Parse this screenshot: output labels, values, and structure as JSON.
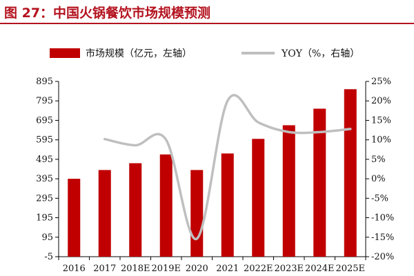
{
  "header": {
    "title": "图 27：中国火锅餐饮市场规模预测"
  },
  "colors": {
    "title": "#b3121e",
    "rule": "#b3121e",
    "bar": "#c00000",
    "line": "#bfbfbf",
    "axis": "#000000"
  },
  "chart_data": {
    "type": "bar",
    "categories": [
      "2016",
      "2017",
      "2018E",
      "2019E",
      "2020",
      "2021",
      "2022E",
      "2023E",
      "2024E",
      "2025E"
    ],
    "series": [
      {
        "name": "市场规模（亿元，左轴）",
        "type": "bar",
        "axis": "left",
        "values": [
          395,
          440,
          475,
          520,
          440,
          525,
          600,
          670,
          755,
          855
        ]
      },
      {
        "name": "YOY（%，右轴）",
        "type": "line",
        "axis": "right",
        "values": [
          null,
          10.2,
          8.6,
          10.0,
          -15.4,
          20.0,
          14.5,
          12.0,
          12.0,
          12.8
        ]
      }
    ],
    "y_left": {
      "ticks": [
        "895",
        "795",
        "695",
        "595",
        "495",
        "395",
        "295",
        "195",
        "95",
        "-5"
      ],
      "range": [
        -5,
        895
      ]
    },
    "y_right": {
      "ticks": [
        "25%",
        "20%",
        "15%",
        "10%",
        "5%",
        "0%",
        "-5%",
        "-10%",
        "-15%",
        "-20%"
      ],
      "range": [
        -20,
        25
      ]
    },
    "legend_position": "top"
  }
}
